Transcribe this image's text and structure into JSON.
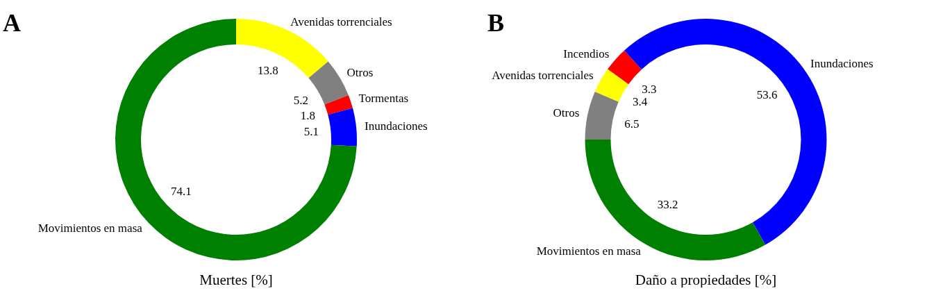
{
  "chart_data": [
    {
      "type": "donut",
      "title": "Muertes [%]",
      "annotations": [
        "A"
      ],
      "categories": [
        "Avenidas torrenciales",
        "Otros",
        "Tormentas",
        "Inundaciones",
        "Movimientos en masa"
      ],
      "values": [
        13.8,
        5.2,
        1.8,
        5.1,
        74.1
      ],
      "colors": [
        "#ffff00",
        "#808080",
        "#ff0000",
        "#0000ff",
        "#008000"
      ],
      "data_labels": true
    },
    {
      "type": "donut",
      "title": "Daño a propiedades [%]",
      "annotations": [
        "B"
      ],
      "categories": [
        "Otros",
        "Avenidas torrenciales",
        "Incendios",
        "Inundaciones",
        "Movimientos en masa"
      ],
      "values": [
        6.5,
        3.4,
        3.3,
        53.6,
        33.2
      ],
      "colors": [
        "#808080",
        "#ffff00",
        "#ff0000",
        "#0000ff",
        "#008000"
      ],
      "data_labels": true
    }
  ]
}
